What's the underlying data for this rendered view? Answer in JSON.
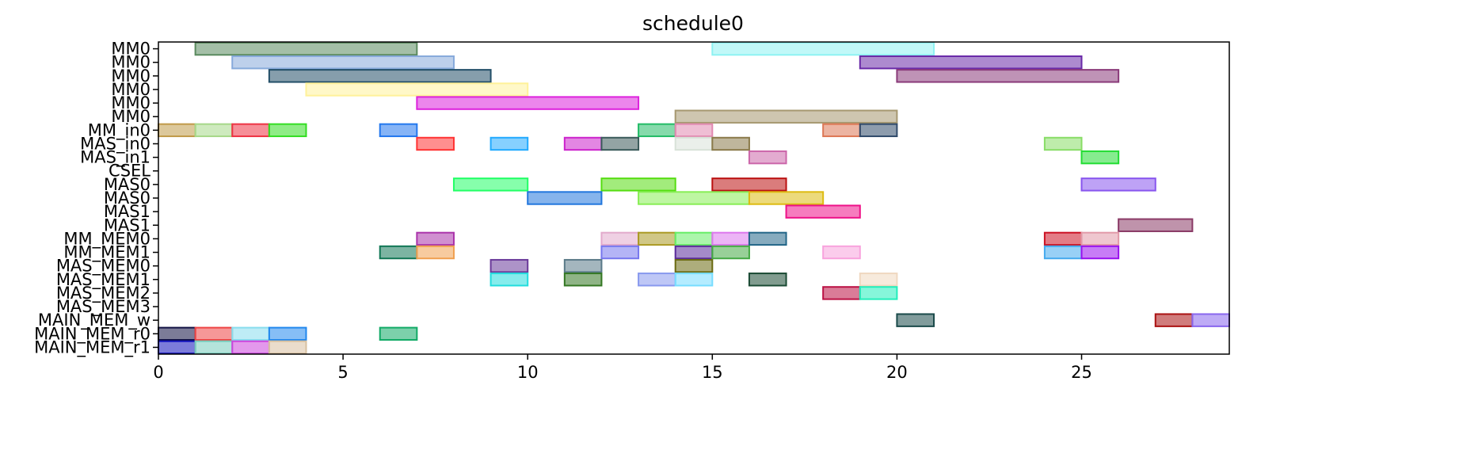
{
  "chart_data": {
    "type": "gantt",
    "title": "schedule0",
    "xlabel": "",
    "ylabel": "",
    "xlim": [
      0,
      29
    ],
    "xticks": [
      0,
      5,
      10,
      15,
      20,
      25
    ],
    "grid": false,
    "rows": [
      "MM0",
      "MM0",
      "MM0",
      "MM0",
      "MM0",
      "MM0",
      "MM_in0",
      "MAS_in0",
      "MAS_in1",
      "CSEL",
      "MAS0",
      "MAS0",
      "MAS1",
      "MAS1",
      "MM_MEM0",
      "MM_MEM1",
      "MAS_MEM0",
      "MAS_MEM1",
      "MAS_MEM2",
      "MAS_MEM3",
      "MAIN_MEM_w",
      "MAIN_MEM_r0",
      "MAIN_MEM_r1"
    ],
    "tasks": [
      {
        "row": 0,
        "start": 1,
        "end": 7,
        "color": "#5a8a5e"
      },
      {
        "row": 0,
        "start": 15,
        "end": 21,
        "color": "#8ef2f2"
      },
      {
        "row": 1,
        "start": 2,
        "end": 8,
        "color": "#87aadb"
      },
      {
        "row": 1,
        "start": 19,
        "end": 25,
        "color": "#6a2aa8"
      },
      {
        "row": 2,
        "start": 3,
        "end": 9,
        "color": "#234f68"
      },
      {
        "row": 2,
        "start": 20,
        "end": 26,
        "color": "#8a3a7a"
      },
      {
        "row": 3,
        "start": 4,
        "end": 10,
        "color": "#fff29a"
      },
      {
        "row": 4,
        "start": 7,
        "end": 13,
        "color": "#dd22dd"
      },
      {
        "row": 5,
        "start": 14,
        "end": 20,
        "color": "#a69870"
      },
      {
        "row": 6,
        "start": 0,
        "end": 1,
        "color": "#c09a48"
      },
      {
        "row": 6,
        "start": 1,
        "end": 2,
        "color": "#a6d888"
      },
      {
        "row": 6,
        "start": 2,
        "end": 3,
        "color": "#ee3344"
      },
      {
        "row": 6,
        "start": 3,
        "end": 4,
        "color": "#33dd22"
      },
      {
        "row": 6,
        "start": 6,
        "end": 7,
        "color": "#2277ee"
      },
      {
        "row": 6,
        "start": 13,
        "end": 14,
        "color": "#22bb66"
      },
      {
        "row": 6,
        "start": 14,
        "end": 15,
        "color": "#e288b0"
      },
      {
        "row": 6,
        "start": 18,
        "end": 19,
        "color": "#dd7755"
      },
      {
        "row": 6,
        "start": 19,
        "end": 20,
        "color": "#304a6a"
      },
      {
        "row": 7,
        "start": 7,
        "end": 8,
        "color": "#ff3333"
      },
      {
        "row": 7,
        "start": 9,
        "end": 10,
        "color": "#22aaff"
      },
      {
        "row": 7,
        "start": 11,
        "end": 12,
        "color": "#cc22cc"
      },
      {
        "row": 7,
        "start": 12,
        "end": 13,
        "color": "#3a5a5a"
      },
      {
        "row": 7,
        "start": 14,
        "end": 15,
        "color": "#d8e2d8"
      },
      {
        "row": 7,
        "start": 15,
        "end": 16,
        "color": "#8a7a4a"
      },
      {
        "row": 7,
        "start": 24,
        "end": 25,
        "color": "#88dd66"
      },
      {
        "row": 8,
        "start": 16,
        "end": 17,
        "color": "#cc66aa"
      },
      {
        "row": 8,
        "start": 25,
        "end": 26,
        "color": "#22dd33"
      },
      {
        "row": 10,
        "start": 8,
        "end": 10,
        "color": "#22ff66"
      },
      {
        "row": 10,
        "start": 12,
        "end": 14,
        "color": "#55dd11"
      },
      {
        "row": 10,
        "start": 15,
        "end": 17,
        "color": "#bb1111"
      },
      {
        "row": 10,
        "start": 25,
        "end": 27,
        "color": "#8855ee"
      },
      {
        "row": 11,
        "start": 10,
        "end": 12,
        "color": "#2277dd"
      },
      {
        "row": 11,
        "start": 13,
        "end": 16,
        "color": "#88ee55"
      },
      {
        "row": 11,
        "start": 16,
        "end": 18,
        "color": "#ddbb11"
      },
      {
        "row": 12,
        "start": 17,
        "end": 19,
        "color": "#ee1188"
      },
      {
        "row": 13,
        "start": 26,
        "end": 28,
        "color": "#8a3a66"
      },
      {
        "row": 14,
        "start": 7,
        "end": 8,
        "color": "#aa33aa"
      },
      {
        "row": 14,
        "start": 12,
        "end": 13,
        "color": "#e2aacc"
      },
      {
        "row": 14,
        "start": 13,
        "end": 14,
        "color": "#aa9922"
      },
      {
        "row": 14,
        "start": 14,
        "end": 15,
        "color": "#66ee66"
      },
      {
        "row": 14,
        "start": 15,
        "end": 16,
        "color": "#dd77ee"
      },
      {
        "row": 14,
        "start": 16,
        "end": 17,
        "color": "#226688"
      },
      {
        "row": 14,
        "start": 24,
        "end": 25,
        "color": "#cc1122"
      },
      {
        "row": 14,
        "start": 25,
        "end": 26,
        "color": "#e299a8"
      },
      {
        "row": 15,
        "start": 6,
        "end": 7,
        "color": "#117755"
      },
      {
        "row": 15,
        "start": 7,
        "end": 8,
        "color": "#f0a050"
      },
      {
        "row": 15,
        "start": 12,
        "end": 13,
        "color": "#7777ee"
      },
      {
        "row": 15,
        "start": 14,
        "end": 15,
        "color": "#5a2a9a"
      },
      {
        "row": 15,
        "start": 15,
        "end": 16,
        "color": "#44aa44"
      },
      {
        "row": 15,
        "start": 18,
        "end": 19,
        "color": "#f8a2dd"
      },
      {
        "row": 15,
        "start": 24,
        "end": 25,
        "color": "#44aaee"
      },
      {
        "row": 15,
        "start": 25,
        "end": 26,
        "color": "#9911ee"
      },
      {
        "row": 16,
        "start": 9,
        "end": 10,
        "color": "#6a3a9a"
      },
      {
        "row": 16,
        "start": 11,
        "end": 12,
        "color": "#5a7a88"
      },
      {
        "row": 16,
        "start": 14,
        "end": 15,
        "color": "#6a6a11"
      },
      {
        "row": 17,
        "start": 9,
        "end": 10,
        "color": "#22dddd"
      },
      {
        "row": 17,
        "start": 11,
        "end": 12,
        "color": "#337722"
      },
      {
        "row": 17,
        "start": 13,
        "end": 14,
        "color": "#8899ee"
      },
      {
        "row": 17,
        "start": 14,
        "end": 15,
        "color": "#77ddff"
      },
      {
        "row": 17,
        "start": 16,
        "end": 17,
        "color": "#1a4a33"
      },
      {
        "row": 17,
        "start": 19,
        "end": 20,
        "color": "#f0d8c0"
      },
      {
        "row": 18,
        "start": 18,
        "end": 19,
        "color": "#bb1144"
      },
      {
        "row": 18,
        "start": 19,
        "end": 20,
        "color": "#22eebb"
      },
      {
        "row": 20,
        "start": 20,
        "end": 21,
        "color": "#1a4a4a"
      },
      {
        "row": 20,
        "start": 27,
        "end": 28,
        "color": "#aa1111"
      },
      {
        "row": 20,
        "start": 28,
        "end": 29,
        "color": "#8866ee"
      },
      {
        "row": 21,
        "start": 0,
        "end": 1,
        "color": "#111144"
      },
      {
        "row": 21,
        "start": 1,
        "end": 2,
        "color": "#ee4444"
      },
      {
        "row": 21,
        "start": 2,
        "end": 3,
        "color": "#88ddee"
      },
      {
        "row": 21,
        "start": 3,
        "end": 4,
        "color": "#2288ee"
      },
      {
        "row": 21,
        "start": 6,
        "end": 7,
        "color": "#11aa66"
      },
      {
        "row": 22,
        "start": 0,
        "end": 1,
        "color": "#1111bb"
      },
      {
        "row": 22,
        "start": 1,
        "end": 2,
        "color": "#77ccbb"
      },
      {
        "row": 22,
        "start": 2,
        "end": 3,
        "color": "#cc44dd"
      },
      {
        "row": 22,
        "start": 3,
        "end": 4,
        "color": "#d8c0a0"
      }
    ]
  }
}
